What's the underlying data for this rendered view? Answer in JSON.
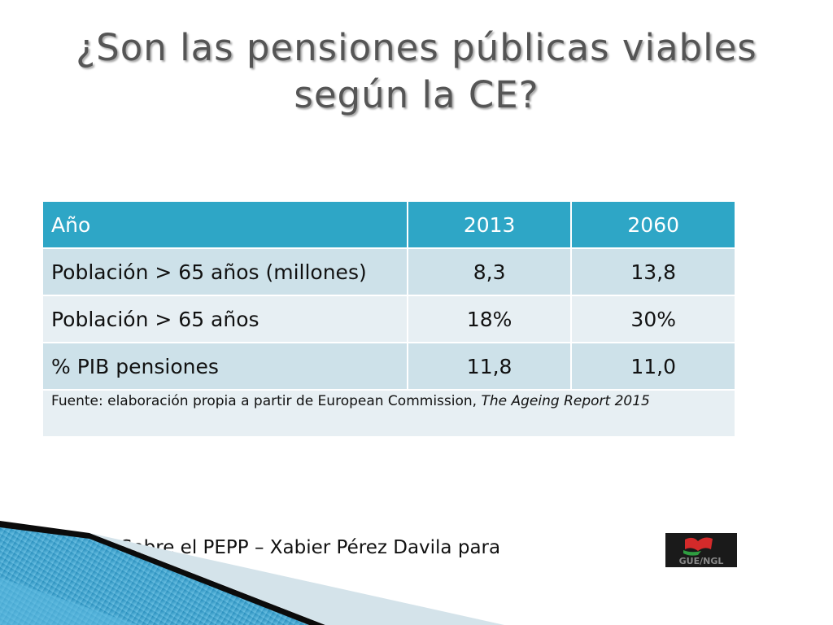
{
  "slide": {
    "title": "¿Son las pensiones públicas viables según la CE?"
  },
  "table": {
    "header": [
      "Año",
      "2013",
      "2060"
    ],
    "rows": [
      [
        "Población > 65 años (millones)",
        "8,3",
        "13,8"
      ],
      [
        "Población > 65 años",
        "18%",
        "30%"
      ],
      [
        "% PIB pensiones",
        "11,8",
        "11,0"
      ]
    ],
    "source": {
      "text": "Fuente: elaboración propia a partir de European Commission, ",
      "italic_title": "The Ageing Report 2015"
    }
  },
  "footer": {
    "text": "Sobre el PEPP – Xabier Pérez Davila para",
    "logo_text": "GUE/NGL"
  },
  "colors": {
    "header_bg": "#2ea6c6",
    "row_dark": "#cde1e9",
    "row_light": "#e7eff3",
    "title": "#555555"
  }
}
